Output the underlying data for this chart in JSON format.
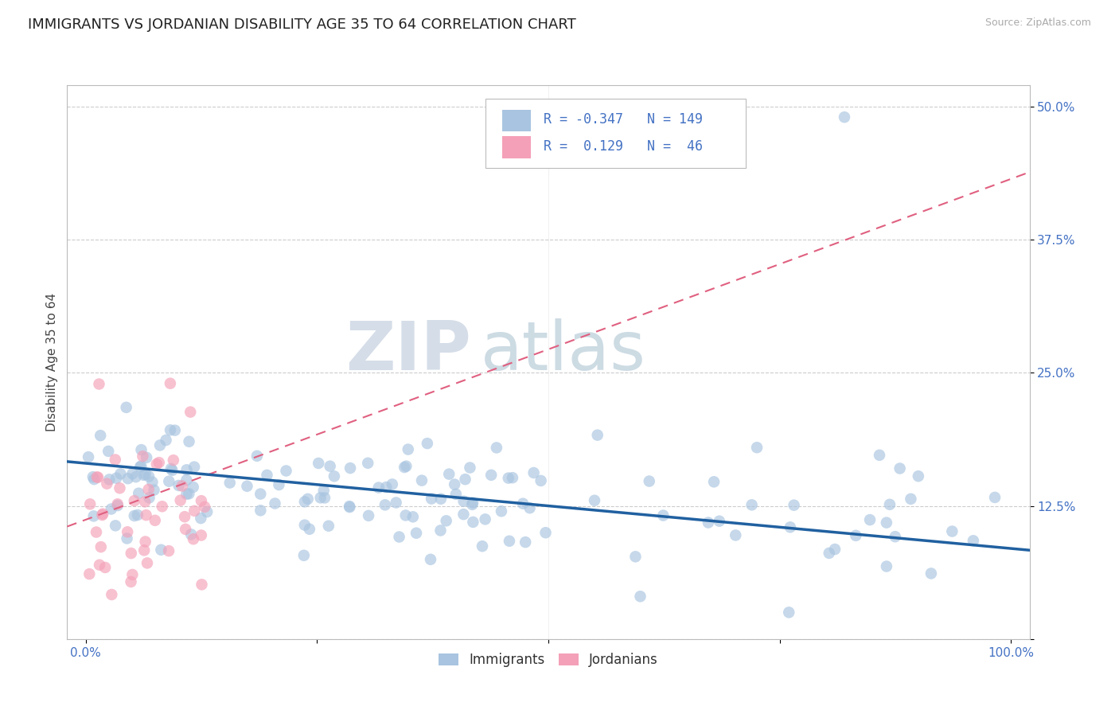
{
  "title": "IMMIGRANTS VS JORDANIAN DISABILITY AGE 35 TO 64 CORRELATION CHART",
  "source_text": "Source: ZipAtlas.com",
  "xlabel": "",
  "ylabel": "Disability Age 35 to 64",
  "xlim": [
    -0.02,
    1.02
  ],
  "ylim": [
    0.0,
    0.52
  ],
  "xticks": [
    0.0,
    0.25,
    0.5,
    0.75,
    1.0
  ],
  "xticklabels_edge": [
    "0.0%",
    "",
    "",
    "",
    "100.0%"
  ],
  "yticks": [
    0.0,
    0.125,
    0.25,
    0.375,
    0.5
  ],
  "yticklabels": [
    "",
    "12.5%",
    "25.0%",
    "37.5%",
    "50.0%"
  ],
  "immigrants_R": -0.347,
  "immigrants_N": 149,
  "jordanians_R": 0.129,
  "jordanians_N": 46,
  "immigrants_color": "#a8c4e0",
  "immigrants_line_color": "#2060a0",
  "jordanians_color": "#f4a0b8",
  "jordanians_line_color": "#e06080",
  "legend_color": "#4472c4",
  "background_color": "#ffffff",
  "grid_color": "#cccccc",
  "watermark_part1": "ZIP",
  "watermark_part2": "atlas",
  "title_fontsize": 13,
  "axis_label_fontsize": 11,
  "tick_fontsize": 11,
  "legend_fontsize": 13
}
